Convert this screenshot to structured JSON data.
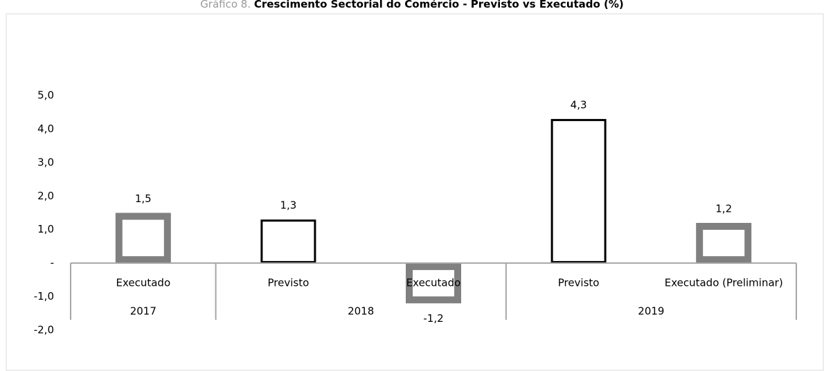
{
  "chart_data": {
    "type": "bar",
    "figure_label": "Gráfico 8.",
    "title": "Crescimento Sectorial do Comércio - Previsto vs Executado (%)",
    "categories": [
      "Executado",
      "Previsto",
      "Executado",
      "Previsto",
      "Executado (Preliminar)"
    ],
    "groups": [
      {
        "label": "2017",
        "span": 1
      },
      {
        "label": "2018",
        "span": 2
      },
      {
        "label": "2019",
        "span": 2
      }
    ],
    "values": [
      1.5,
      1.3,
      -1.2,
      4.3,
      1.2
    ],
    "value_labels": [
      "1,5",
      "1,3",
      "-1,2",
      "4,3",
      "1,2"
    ],
    "colors": [
      "#808080",
      "#000000",
      "#808080",
      "#000000",
      "#808080"
    ],
    "ylim": [
      -2,
      5
    ],
    "yticks": [
      {
        "value": 5,
        "label": "5,0"
      },
      {
        "value": 4,
        "label": "4,0"
      },
      {
        "value": 3,
        "label": "3,0"
      },
      {
        "value": 2,
        "label": "2,0"
      },
      {
        "value": 1,
        "label": "1,0"
      },
      {
        "value": 0,
        "label": "-"
      },
      {
        "value": -1,
        "label": "-1,0"
      },
      {
        "value": -2,
        "label": "-2,0"
      }
    ],
    "grid": false
  }
}
